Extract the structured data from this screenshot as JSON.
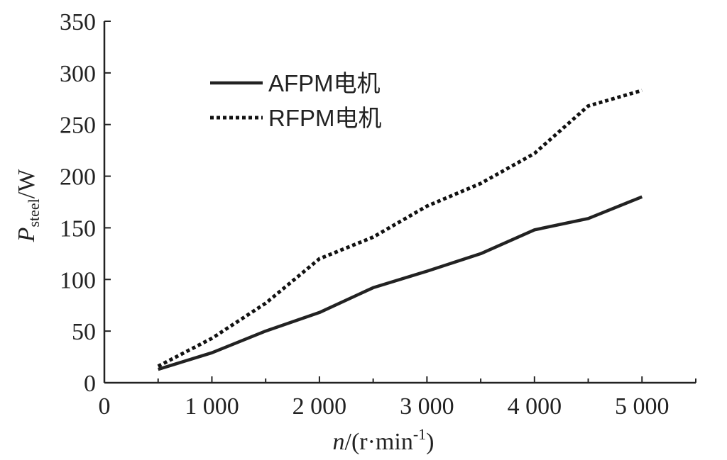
{
  "chart_data": {
    "type": "line",
    "xlabel": "n/(r·min-1)",
    "ylabel": "Psteel/W",
    "xlim": [
      0,
      5500
    ],
    "ylim": [
      0,
      350
    ],
    "x_ticks": [
      0,
      1000,
      2000,
      3000,
      4000,
      5000
    ],
    "x_tick_labels": [
      "0",
      "1 000",
      "2 000",
      "3 000",
      "4 000",
      "5 000"
    ],
    "y_ticks": [
      0,
      50,
      100,
      150,
      200,
      250,
      300,
      350
    ],
    "y_tick_labels": [
      "0",
      "50",
      "100",
      "150",
      "200",
      "250",
      "300",
      "350"
    ],
    "grid": false,
    "legend": "top-left",
    "x": [
      500,
      1000,
      1500,
      2000,
      2500,
      3000,
      3500,
      4000,
      4500,
      5000
    ],
    "series": [
      {
        "name": "AFPM电机",
        "style": "solid",
        "color": "#222222",
        "values": [
          13,
          29,
          50,
          68,
          92,
          108,
          125,
          148,
          159,
          180
        ]
      },
      {
        "name": "RFPM电机",
        "style": "dotted",
        "color": "#111111",
        "values": [
          16,
          43,
          77,
          120,
          141,
          171,
          193,
          222,
          268,
          283
        ]
      }
    ]
  }
}
